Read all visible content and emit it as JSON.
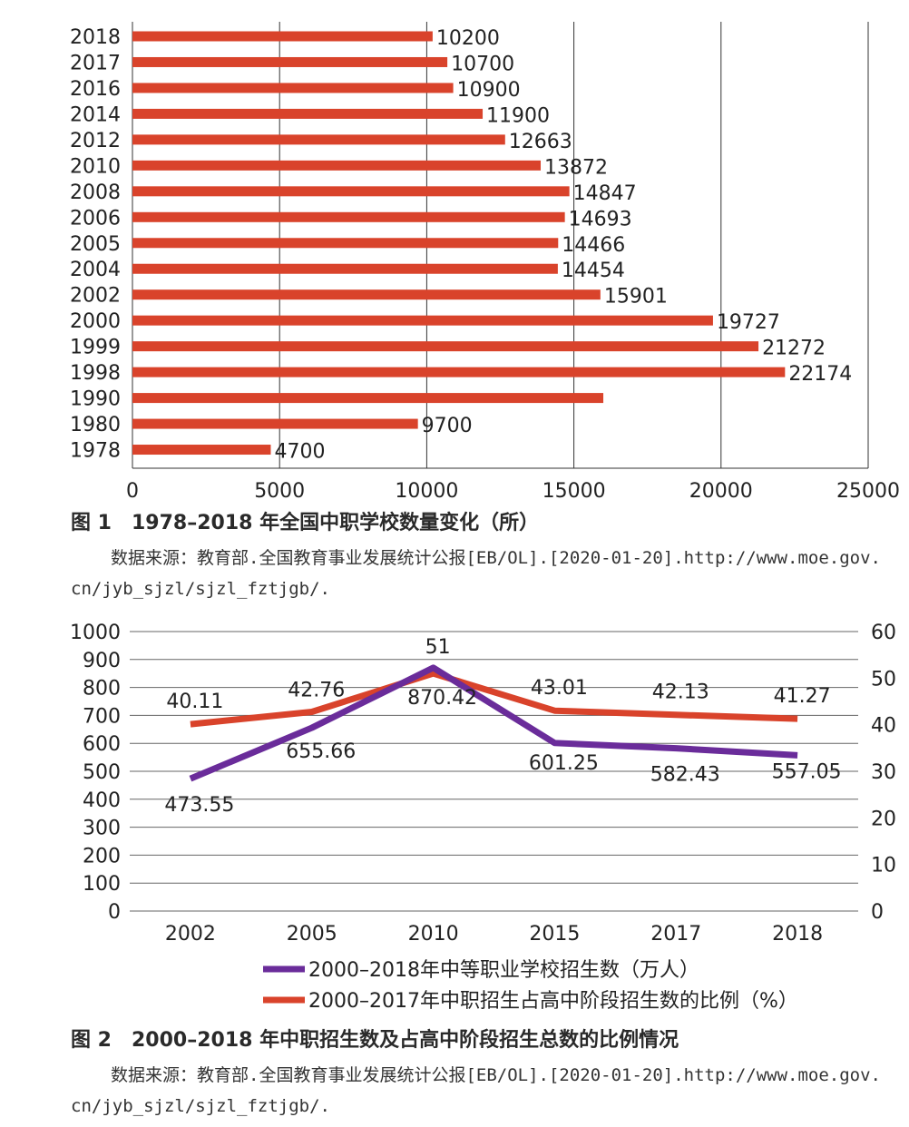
{
  "chart_data": [
    {
      "type": "bar",
      "orientation": "horizontal",
      "categories": [
        "2018",
        "2017",
        "2016",
        "2014",
        "2012",
        "2010",
        "2008",
        "2006",
        "2005",
        "2004",
        "2002",
        "2000",
        "1999",
        "1998",
        "1990",
        "1980",
        "1978"
      ],
      "values": [
        10200,
        10700,
        10900,
        11900,
        12663,
        13872,
        14847,
        14693,
        14466,
        14454,
        15901,
        19727,
        21272,
        22174,
        16000,
        9700,
        4700
      ],
      "data_labels": [
        "10200",
        "10700",
        "10900",
        "11900",
        "12663",
        "13872",
        "14847",
        "14693",
        "14466",
        "14454",
        "15901",
        "19727",
        "21272",
        "22174",
        "",
        "9700",
        "4700"
      ],
      "xlim": [
        0,
        25000
      ],
      "x_ticks": [
        "0",
        "5000",
        "10000",
        "15000",
        "20000",
        "25000"
      ],
      "bar_color": "#d9432b",
      "grid": "vertical",
      "caption_number": "图 1",
      "caption_title": "1978–2018 年全国中职学校数量变化（所）",
      "source_line1": "数据来源：教育部.全国教育事业发展统计公报[EB/OL].[2020-01-20].http://www.moe.gov.",
      "source_line2": "cn/jyb_sjzl/sjzl_fztjgb/."
    },
    {
      "type": "line",
      "categories": [
        "2002",
        "2005",
        "2010",
        "2015",
        "2017",
        "2018"
      ],
      "series": [
        {
          "name": "2000–2018年中等职业学校招生数（万人）",
          "axis": "left",
          "color": "#6a2c9a",
          "values": [
            473.55,
            655.66,
            870.42,
            601.25,
            582.43,
            557.05
          ],
          "labels": [
            "473.55",
            "655.66",
            "870.42",
            "601.25",
            "582.43",
            "557.05"
          ]
        },
        {
          "name": "2000–2017年中职招生占高中阶段招生数的比例（%）",
          "axis": "right",
          "color": "#d9432b",
          "values": [
            40.11,
            42.76,
            51,
            43.01,
            42.13,
            41.27
          ],
          "labels": [
            "40.11",
            "42.76",
            "51",
            "43.01",
            "42.13",
            "41.27"
          ]
        }
      ],
      "ylim_left": [
        0,
        1000
      ],
      "y_ticks_left": [
        "0",
        "100",
        "200",
        "300",
        "400",
        "500",
        "600",
        "700",
        "800",
        "900",
        "1000"
      ],
      "ylim_right": [
        0,
        60
      ],
      "y_ticks_right": [
        "0",
        "10",
        "20",
        "30",
        "40",
        "50",
        "60"
      ],
      "grid": "horizontal",
      "legend_position": "bottom",
      "caption_number": "图 2",
      "caption_title": "2000–2018 年中职招生数及占高中阶段招生总数的比例情况",
      "source_line1": "数据来源：教育部.全国教育事业发展统计公报[EB/OL].[2020-01-20].http://www.moe.gov.",
      "source_line2": "cn/jyb_sjzl/sjzl_fztjgb/."
    }
  ]
}
